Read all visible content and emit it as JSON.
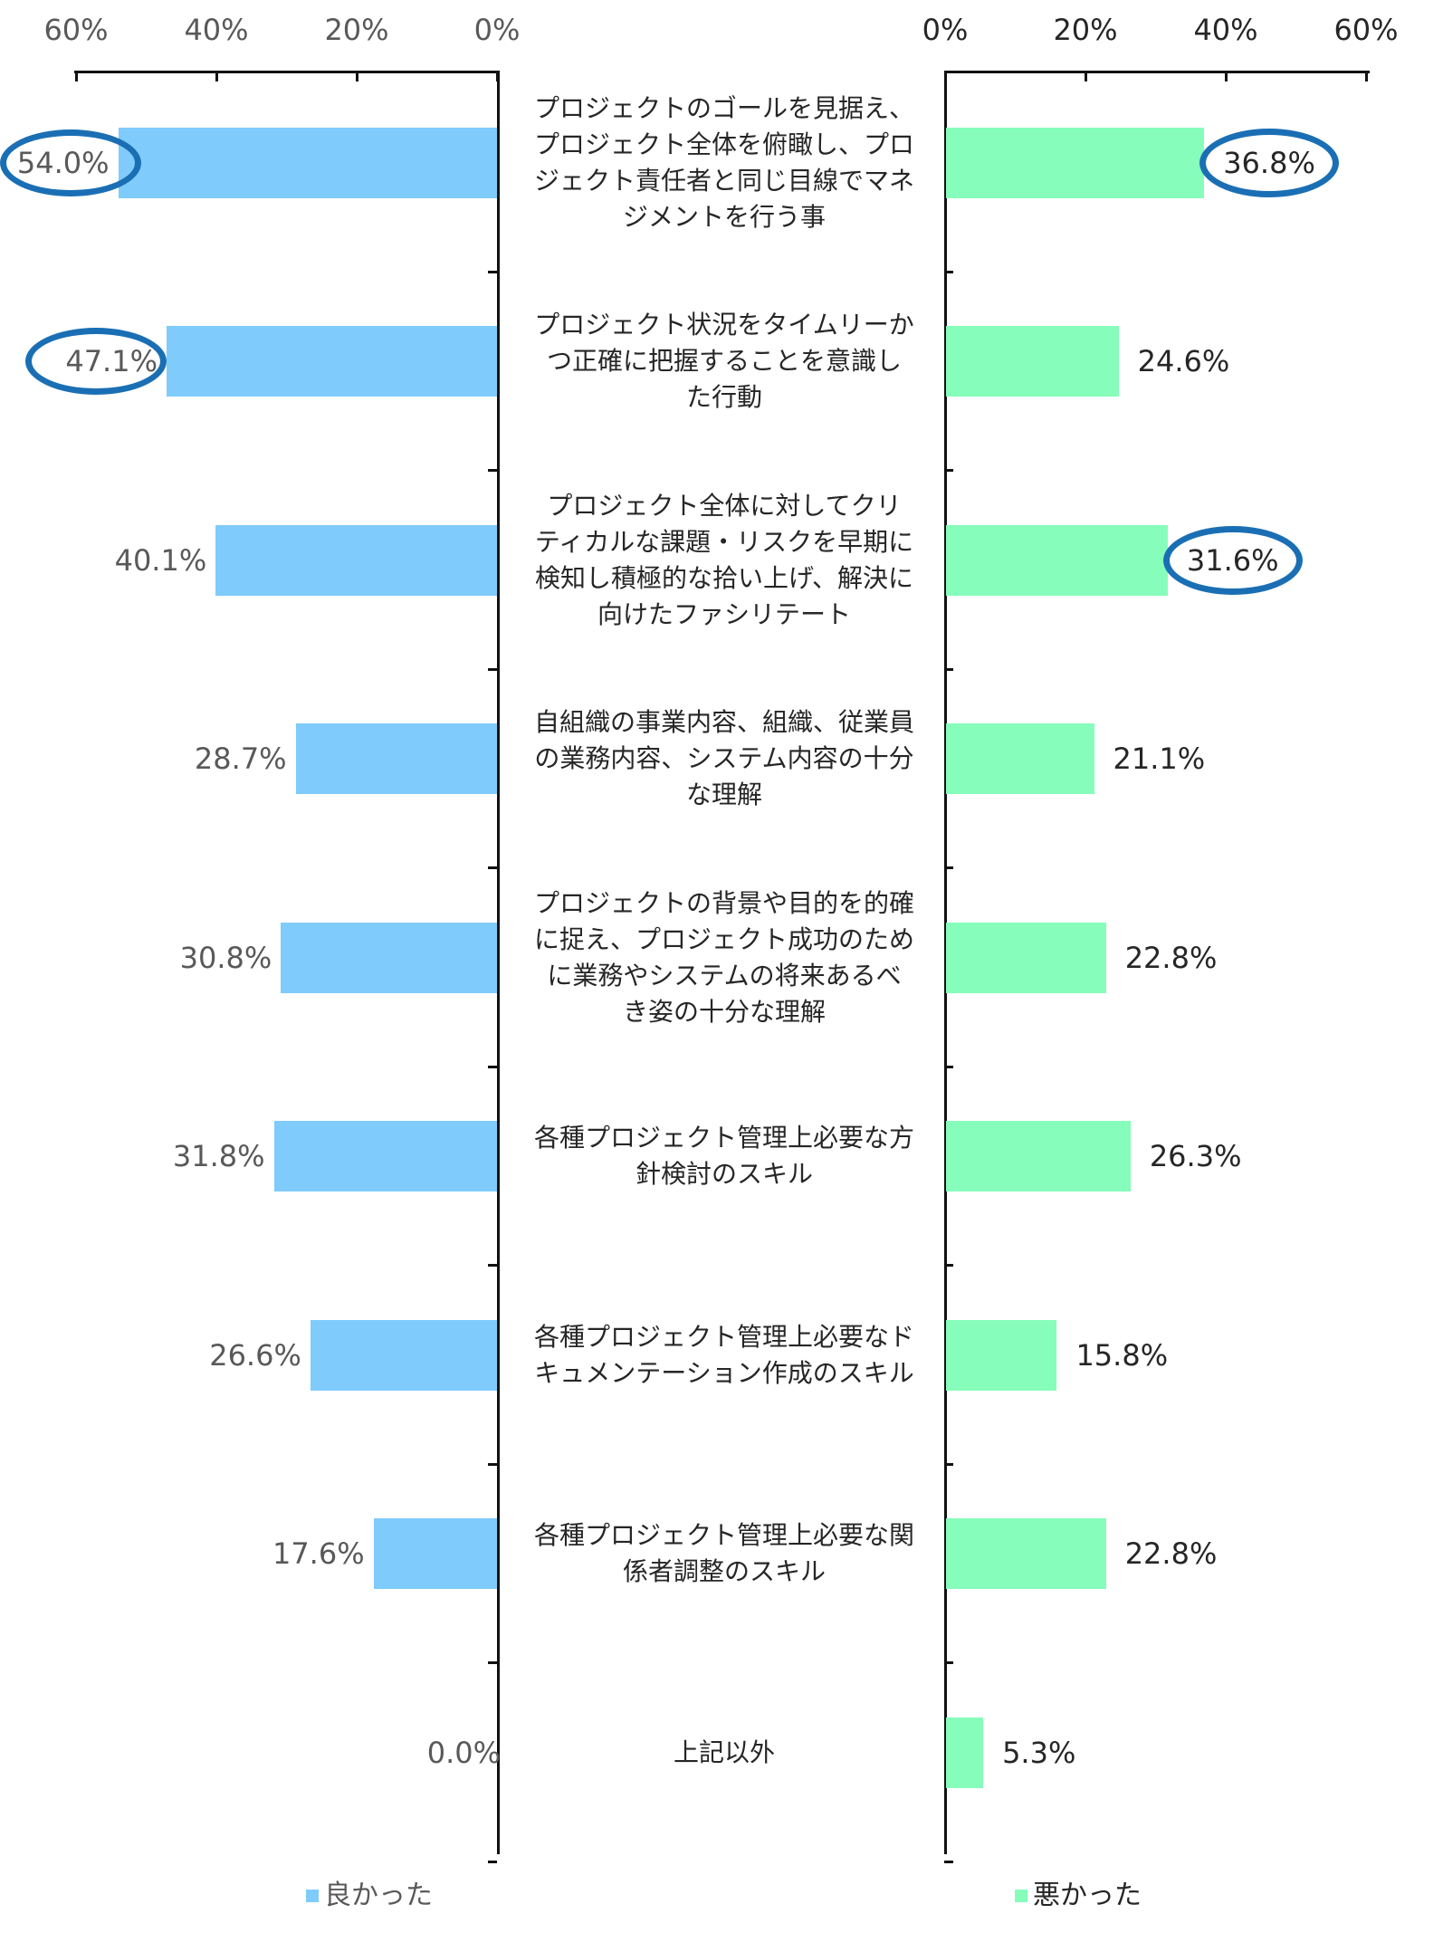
{
  "chart_data": {
    "type": "bar",
    "layout": "butterfly (two back-to-back horizontal bar charts)",
    "categories": [
      "プロジェクトのゴールを見据え、プロジェクト全体を俯瞰し、プロジェクト責任者と同じ目線でマネジメントを行う事",
      "プロジェクト状況をタイムリーかつ正確に把握することを意識した行動",
      "プロジェクト全体に対してクリティカルな課題・リスクを早期に検知し積極的な拾い上げ、解決に向けたファシリテート",
      "自組織の事業内容、組織、従業員の業務内容、システム内容の十分な理解",
      "プロジェクトの背景や目的を的確に捉え、プロジェクト成功のために業務やシステムの将来あるべき姿の十分な理解",
      "各種プロジェクト管理上必要な方針検討のスキル",
      "各種プロジェクト管理上必要なドキュメンテーション作成のスキル",
      "各種プロジェクト管理上必要な関係者調整のスキル",
      "上記以外"
    ],
    "series": [
      {
        "name": "良かった",
        "color": "#7fcbfc",
        "values": [
          54.0,
          47.1,
          40.1,
          28.7,
          30.8,
          31.8,
          26.6,
          17.6,
          0.0
        ]
      },
      {
        "name": "悪かった",
        "color": "#86fdba",
        "values": [
          36.8,
          24.6,
          31.6,
          21.1,
          22.8,
          26.3,
          15.8,
          22.8,
          5.3
        ]
      }
    ],
    "xlim": [
      0,
      60
    ],
    "xticks": [
      "0%",
      "20%",
      "40%",
      "60%"
    ],
    "legend_position": "bottom",
    "annotations": [
      {
        "series": "良かった",
        "value": "54.0%",
        "type": "circle"
      },
      {
        "series": "良かった",
        "value": "47.1%",
        "type": "circle"
      },
      {
        "series": "悪かった",
        "value": "36.8%",
        "type": "circle"
      },
      {
        "series": "悪かった",
        "value": "31.6%",
        "type": "circle"
      }
    ],
    "grid": false
  },
  "axis": {
    "left_ticks": [
      "60%",
      "40%",
      "20%",
      "0%"
    ],
    "right_ticks": [
      "0%",
      "20%",
      "40%",
      "60%"
    ]
  },
  "rows": [
    {
      "lines": [
        "プロジェクトのゴールを見据え、",
        "プロジェクト全体を俯瞰し、プロ",
        "ジェクト責任者と同じ目線でマネ",
        "ジメントを行う事"
      ],
      "good": 54.0,
      "good_label": "54.0%",
      "bad": 36.8,
      "bad_label": "36.8%",
      "good_circled": true,
      "bad_circled": true
    },
    {
      "lines": [
        "プロジェクト状況をタイムリーか",
        "つ正確に把握することを意識し",
        "た行動"
      ],
      "good": 47.1,
      "good_label": "47.1%",
      "bad": 24.6,
      "bad_label": "24.6%",
      "good_circled": true,
      "bad_circled": false
    },
    {
      "lines": [
        "プロジェクト全体に対してクリ",
        "ティカルな課題・リスクを早期に",
        "検知し積極的な拾い上げ、解決に",
        "向けたファシリテート"
      ],
      "good": 40.1,
      "good_label": "40.1%",
      "bad": 31.6,
      "bad_label": "31.6%",
      "good_circled": false,
      "bad_circled": true
    },
    {
      "lines": [
        "自組織の事業内容、組織、従業員",
        "の業務内容、システム内容の十分",
        "な理解"
      ],
      "good": 28.7,
      "good_label": "28.7%",
      "bad": 21.1,
      "bad_label": "21.1%",
      "good_circled": false,
      "bad_circled": false
    },
    {
      "lines": [
        "プロジェクトの背景や目的を的確",
        "に捉え、プロジェクト成功のため",
        "に業務やシステムの将来あるべ",
        "き姿の十分な理解"
      ],
      "good": 30.8,
      "good_label": "30.8%",
      "bad": 22.8,
      "bad_label": "22.8%",
      "good_circled": false,
      "bad_circled": false
    },
    {
      "lines": [
        "各種プロジェクト管理上必要な方",
        "針検討のスキル"
      ],
      "good": 31.8,
      "good_label": "31.8%",
      "bad": 26.3,
      "bad_label": "26.3%",
      "good_circled": false,
      "bad_circled": false
    },
    {
      "lines": [
        "各種プロジェクト管理上必要なド",
        "キュメンテーション作成のスキル"
      ],
      "good": 26.6,
      "good_label": "26.6%",
      "bad": 15.8,
      "bad_label": "15.8%",
      "good_circled": false,
      "bad_circled": false
    },
    {
      "lines": [
        "各種プロジェクト管理上必要な関",
        "係者調整のスキル"
      ],
      "good": 17.6,
      "good_label": "17.6%",
      "bad": 22.8,
      "bad_label": "22.8%",
      "good_circled": false,
      "bad_circled": false
    },
    {
      "lines": [
        "上記以外"
      ],
      "good": 0.0,
      "good_label": "0.0%",
      "bad": 5.3,
      "bad_label": "5.3%",
      "good_circled": false,
      "bad_circled": false
    }
  ],
  "legend": {
    "good_label": "良かった",
    "bad_label": "悪かった"
  },
  "colors": {
    "good_bar": "#7fcbfc",
    "bad_bar": "#86fdba",
    "highlight_circle": "#1a6fb4",
    "axis": "#111111"
  }
}
